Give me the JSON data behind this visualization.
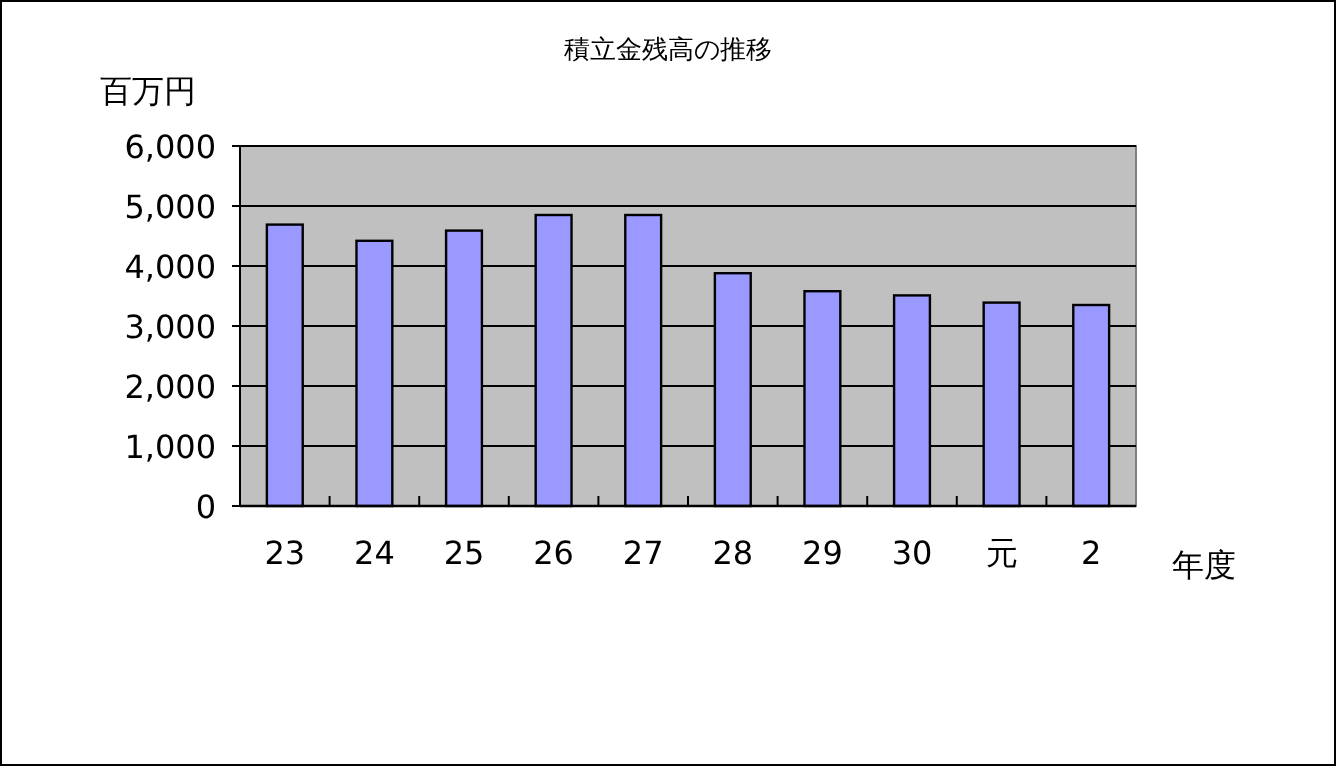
{
  "chart_data": {
    "type": "bar",
    "title": "積立金残高の推移",
    "xlabel": "年度",
    "ylabel": "百万円",
    "categories": [
      "23",
      "24",
      "25",
      "26",
      "27",
      "28",
      "29",
      "30",
      "元",
      "2"
    ],
    "values": [
      4690,
      4420,
      4590,
      4850,
      4850,
      3880,
      3580,
      3510,
      3390,
      3350
    ],
    "color": "#9999ff",
    "ylim": [
      0,
      6000
    ],
    "yticks": [
      0,
      {
        "value": 1000,
        "label": "1,000"
      },
      {
        "value": 2000,
        "label": "2,000"
      },
      {
        "value": 3000,
        "label": "3,000"
      },
      {
        "value": 4000,
        "label": "4,000"
      },
      {
        "value": 5000,
        "label": "5,000"
      },
      {
        "value": 6000,
        "label": "6,000"
      }
    ],
    "grid": "y"
  }
}
